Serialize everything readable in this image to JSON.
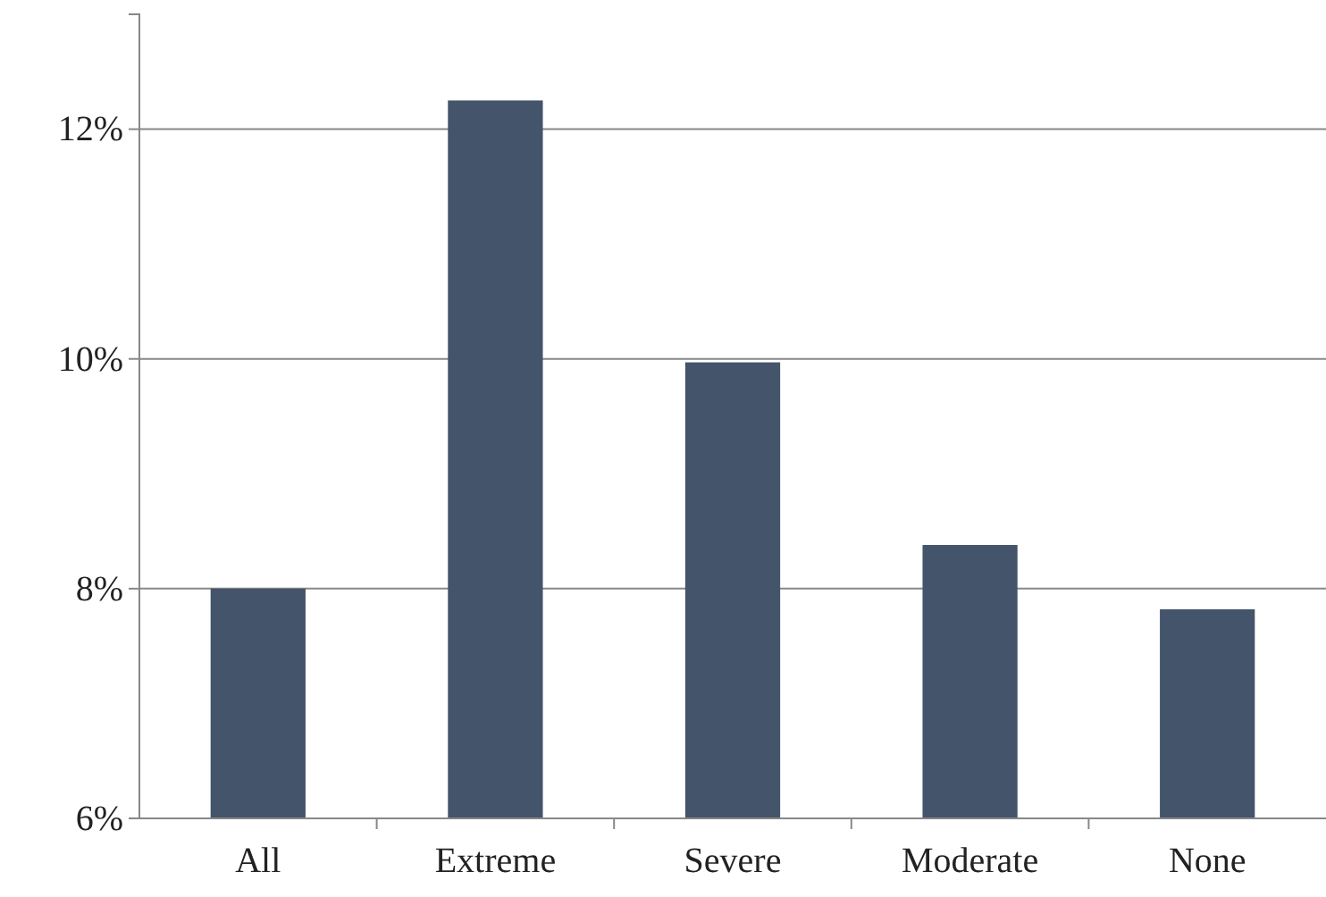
{
  "chart_data": {
    "type": "bar",
    "categories": [
      "All",
      "Extreme",
      "Severe",
      "Moderate",
      "None"
    ],
    "values": [
      8.0,
      12.25,
      9.97,
      8.38,
      7.82
    ],
    "color": "#44546a",
    "ylim": [
      6,
      13
    ],
    "yticks": [
      {
        "value": 6,
        "label": "6%"
      },
      {
        "value": 8,
        "label": "8%"
      },
      {
        "value": 10,
        "label": "10%"
      },
      {
        "value": 12,
        "label": "12%"
      }
    ],
    "grid": "y"
  }
}
